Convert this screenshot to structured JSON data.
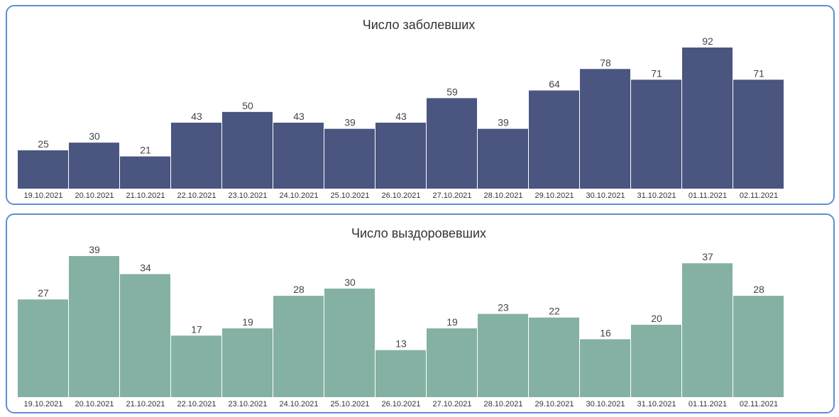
{
  "chart_data": [
    {
      "type": "bar",
      "title": "Число заболевших",
      "categories": [
        "19.10.2021",
        "20.10.2021",
        "21.10.2021",
        "22.10.2021",
        "23.10.2021",
        "24.10.2021",
        "25.10.2021",
        "26.10.2021",
        "27.10.2021",
        "28.10.2021",
        "29.10.2021",
        "30.10.2021",
        "31.10.2021",
        "01.11.2021",
        "02.11.2021"
      ],
      "values": [
        25,
        30,
        21,
        43,
        50,
        43,
        39,
        43,
        59,
        39,
        64,
        78,
        71,
        92,
        71
      ],
      "color": "#4a5580",
      "grid": false,
      "legend": "none"
    },
    {
      "type": "bar",
      "title": "Число выздоровевших",
      "categories": [
        "19.10.2021",
        "20.10.2021",
        "21.10.2021",
        "22.10.2021",
        "23.10.2021",
        "24.10.2021",
        "25.10.2021",
        "26.10.2021",
        "27.10.2021",
        "28.10.2021",
        "29.10.2021",
        "30.10.2021",
        "31.10.2021",
        "01.11.2021",
        "02.11.2021"
      ],
      "values": [
        27,
        39,
        34,
        17,
        19,
        28,
        30,
        13,
        19,
        23,
        22,
        16,
        20,
        37,
        28
      ],
      "color": "#84b1a3",
      "grid": false,
      "legend": "none"
    }
  ],
  "colors": {
    "panel_border": "#5b8fd6",
    "text": "#333333"
  }
}
